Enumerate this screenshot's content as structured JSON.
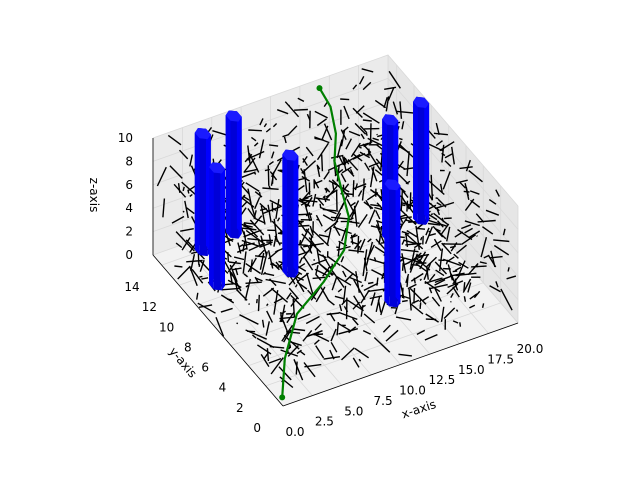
{
  "chart_data": {
    "type": "3d-scatter-path",
    "title": "",
    "xlabel": "x-axis",
    "ylabel": "y-axis",
    "zlabel": "z-axis",
    "xlim": [
      0,
      20
    ],
    "ylim": [
      0,
      15
    ],
    "zlim": [
      0,
      10
    ],
    "x_ticks": [
      "0.0",
      "2.5",
      "5.0",
      "7.5",
      "10.0",
      "12.5",
      "15.0",
      "17.5",
      "20.0"
    ],
    "y_ticks": [
      "0",
      "2",
      "4",
      "6",
      "8",
      "10",
      "12",
      "14"
    ],
    "z_ticks": [
      "0",
      "2",
      "4",
      "6",
      "8",
      "10"
    ],
    "grid": true,
    "colors": {
      "tree_edges": "#000000",
      "obstacles": "#0000ff",
      "path": "#008000",
      "pane": "#f2f2f2",
      "grid": "#d9d9d9"
    },
    "obstacles": [
      {
        "x": 2.5,
        "y": 11.0,
        "height": 10
      },
      {
        "x": 3.5,
        "y": 14.0,
        "height": 10
      },
      {
        "x": 6.5,
        "y": 14.5,
        "height": 10
      },
      {
        "x": 8.0,
        "y": 10.0,
        "height": 10
      },
      {
        "x": 13.0,
        "y": 5.0,
        "height": 10
      },
      {
        "x": 16.5,
        "y": 10.0,
        "height": 10
      },
      {
        "x": 19.5,
        "y": 10.5,
        "height": 10
      }
    ],
    "path": [
      {
        "x": 0.3,
        "y": 0.5,
        "z": 0.2
      },
      {
        "x": 2.0,
        "y": 2.5,
        "z": 1.2
      },
      {
        "x": 4.5,
        "y": 4.5,
        "z": 2.4
      },
      {
        "x": 7.5,
        "y": 5.5,
        "z": 3.2
      },
      {
        "x": 10.0,
        "y": 6.5,
        "z": 4.2
      },
      {
        "x": 11.5,
        "y": 8.0,
        "z": 5.2
      },
      {
        "x": 12.0,
        "y": 9.5,
        "z": 6.0
      },
      {
        "x": 12.5,
        "y": 11.0,
        "z": 7.0
      },
      {
        "x": 13.5,
        "y": 12.2,
        "z": 8.0
      },
      {
        "x": 14.0,
        "y": 13.5,
        "z": 9.0
      },
      {
        "x": 13.8,
        "y": 14.5,
        "z": 9.8
      }
    ]
  }
}
